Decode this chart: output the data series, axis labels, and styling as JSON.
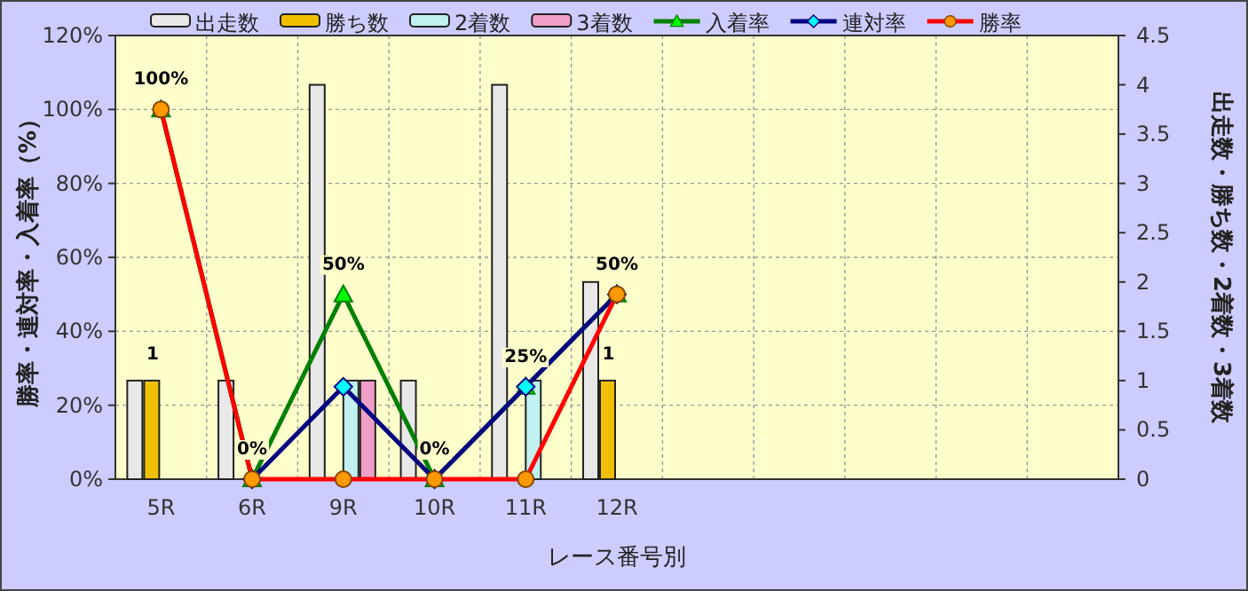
{
  "chart_data": {
    "type": "bar",
    "categories": [
      "5R",
      "6R",
      "9R",
      "10R",
      "11R",
      "12R",
      null,
      null,
      null,
      null,
      null
    ],
    "xlabel": "レース番号別",
    "ylabel": "勝率・連対率・入着率（%）",
    "y2label": "出走数・勝ち数・2着数・3着数",
    "ylim": [
      0,
      120
    ],
    "yticks": [
      {
        "value": 0,
        "label": "0%"
      },
      {
        "value": 20,
        "label": "20%"
      },
      {
        "value": 40,
        "label": "40%"
      },
      {
        "value": 60,
        "label": "60%"
      },
      {
        "value": 80,
        "label": "80%"
      },
      {
        "value": 100,
        "label": "100%"
      },
      {
        "value": 120,
        "label": "120%"
      }
    ],
    "y2lim": [
      0,
      4.5
    ],
    "y2ticks": [
      0,
      0.5,
      1,
      1.5,
      2,
      2.5,
      3,
      3.5,
      4,
      4.5
    ],
    "grid": true,
    "legend": "top",
    "series": [
      {
        "name": "出走数",
        "axis": "y2",
        "color": "#e8e8e8",
        "values": [
          1,
          1,
          4,
          1,
          4,
          2,
          null,
          null,
          null,
          null,
          null
        ]
      },
      {
        "name": "勝ち数",
        "axis": "y2",
        "color": "#f0c000",
        "values": [
          1,
          0,
          0,
          0,
          0,
          1,
          null,
          null,
          null,
          null,
          null
        ],
        "value_labels": [
          "1",
          null,
          null,
          null,
          null,
          "1",
          null,
          null,
          null,
          null,
          null
        ]
      },
      {
        "name": "2着数",
        "axis": "y2",
        "color": "#c0f0f0",
        "values": [
          0,
          0,
          1,
          0,
          1,
          0,
          null,
          null,
          null,
          null,
          null
        ]
      },
      {
        "name": "3着数",
        "axis": "y2",
        "color": "#f0a0c8",
        "values": [
          0,
          0,
          1,
          0,
          0,
          0,
          null,
          null,
          null,
          null,
          null
        ]
      },
      {
        "name": "入着率",
        "type": "line",
        "marker": "triangle",
        "color": "#008000",
        "values": [
          100,
          0,
          50,
          0,
          25,
          50,
          null,
          null,
          null,
          null,
          null
        ],
        "value_labels": [
          "100%",
          "0%",
          "50%",
          "0%",
          "25%",
          "50%",
          null,
          null,
          null,
          null,
          null
        ]
      },
      {
        "name": "連対率",
        "type": "line",
        "marker": "diamond",
        "color": "#000080",
        "values": [
          null,
          0,
          25,
          0,
          25,
          50,
          null,
          null,
          null,
          null,
          null
        ]
      },
      {
        "name": "勝率",
        "type": "line",
        "marker": "circle",
        "color": "#ff0000",
        "values": [
          100,
          0,
          0,
          0,
          0,
          50,
          null,
          null,
          null,
          null,
          null
        ]
      }
    ]
  }
}
